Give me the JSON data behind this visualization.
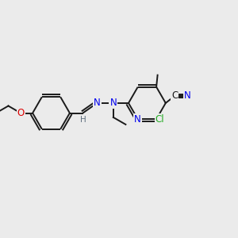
{
  "background_color": "#ebebeb",
  "bond_color": "#1a1a1a",
  "colors": {
    "N": "#0000ee",
    "O": "#dd0000",
    "Cl": "#22aa22",
    "H": "#607080",
    "C": "#1a1a1a"
  },
  "lw": 1.4,
  "fs": 8.5,
  "r_hex": 0.78
}
